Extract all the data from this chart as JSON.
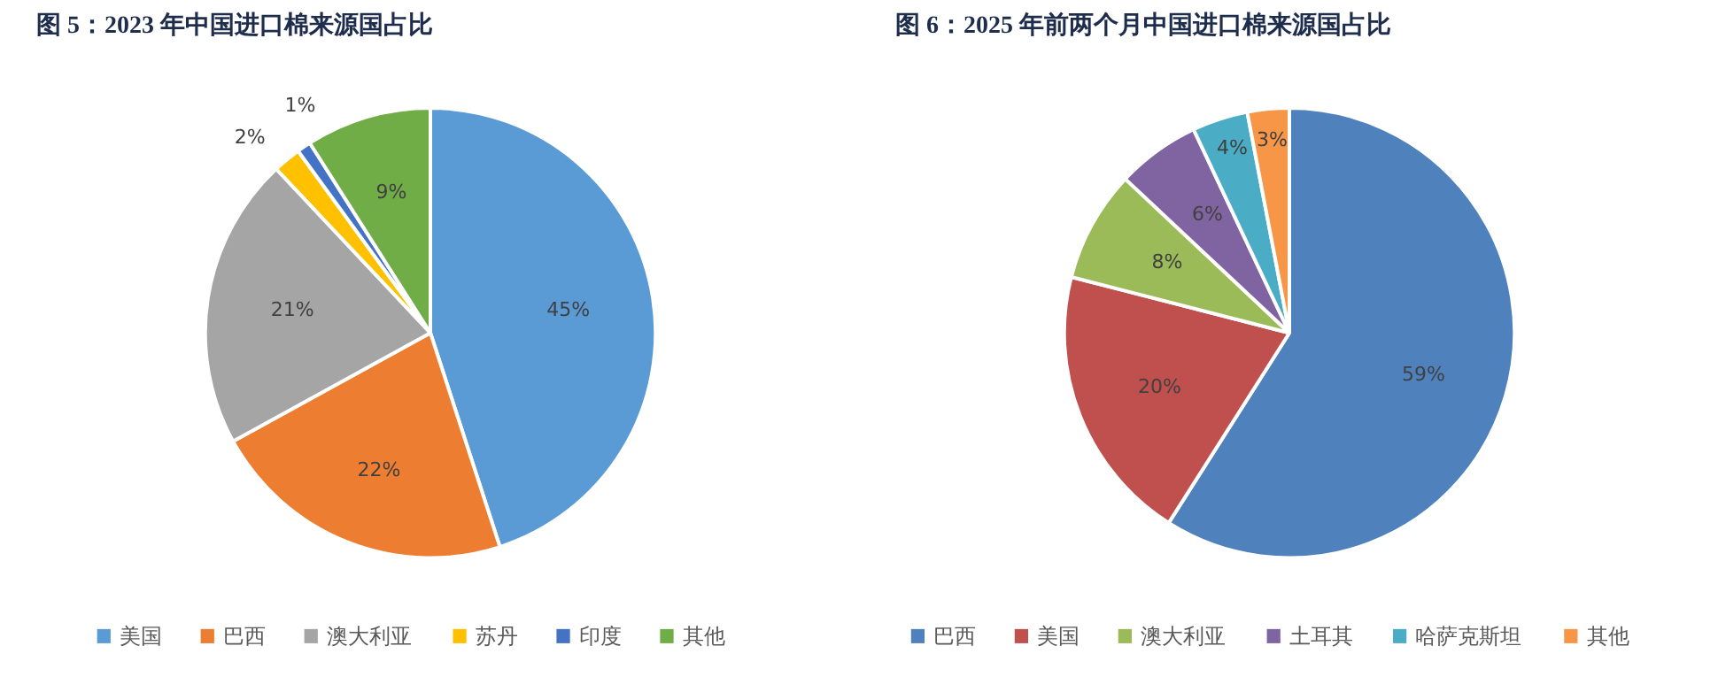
{
  "chart_data": [
    {
      "type": "pie",
      "title": "图 5：2023 年中国进口棉来源国占比",
      "categories": [
        "美国",
        "巴西",
        "澳大利亚",
        "苏丹",
        "印度",
        "其他"
      ],
      "values": [
        45,
        22,
        21,
        2,
        1,
        9
      ],
      "colors": [
        "#5b9bd5",
        "#ed7d31",
        "#a5a5a5",
        "#ffc000",
        "#4472c4",
        "#70ad47"
      ],
      "value_labels": [
        "45%",
        "22%",
        "21%",
        "2%",
        "1%",
        "9%"
      ],
      "legend": "bottom"
    },
    {
      "type": "pie",
      "title": "图 6：2025 年前两个月中国进口棉来源国占比",
      "categories": [
        "巴西",
        "美国",
        "澳大利亚",
        "土耳其",
        "哈萨克斯坦",
        "其他"
      ],
      "values": [
        59,
        20,
        8,
        6,
        4,
        3
      ],
      "colors": [
        "#4f81bd",
        "#c0504d",
        "#9bbb59",
        "#8064a2",
        "#4bacc6",
        "#f79646"
      ],
      "value_labels": [
        "59%",
        "20%",
        "8%",
        "6%",
        "4%",
        "3%"
      ],
      "legend": "bottom"
    }
  ]
}
